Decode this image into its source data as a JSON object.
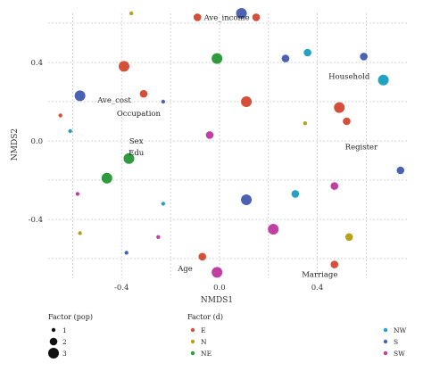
{
  "chart_data": {
    "type": "scatter",
    "xlabel": "NMDS1",
    "ylabel": "NMDS2",
    "xlim": [
      -0.7,
      0.77
    ],
    "ylim": [
      -0.7,
      0.65
    ],
    "xticks": [
      -0.4,
      0.0,
      0.4
    ],
    "xtick_labels": [
      "-0.4",
      "0.0",
      "0.4"
    ],
    "yticks": [
      -0.4,
      0.0,
      0.4
    ],
    "ytick_labels": [
      "-0.4",
      "0.0",
      "0.4"
    ],
    "grid": true,
    "points": [
      {
        "x": -0.09,
        "y": 0.63,
        "d": "E",
        "pop": 2
      },
      {
        "x": 0.15,
        "y": 0.63,
        "d": "E",
        "pop": 2
      },
      {
        "x": 0.09,
        "y": 0.65,
        "d": "S",
        "pop": 3
      },
      {
        "x": -0.36,
        "y": 0.65,
        "d": "N",
        "pop": 1
      },
      {
        "x": -0.39,
        "y": 0.38,
        "d": "E",
        "pop": 3
      },
      {
        "x": -0.01,
        "y": 0.42,
        "d": "NE",
        "pop": 3
      },
      {
        "x": 0.27,
        "y": 0.42,
        "d": "S",
        "pop": 2
      },
      {
        "x": 0.36,
        "y": 0.45,
        "d": "NW",
        "pop": 2
      },
      {
        "x": 0.59,
        "y": 0.43,
        "d": "S",
        "pop": 2
      },
      {
        "x": 0.67,
        "y": 0.31,
        "d": "NW",
        "pop": 3
      },
      {
        "x": -0.57,
        "y": 0.23,
        "d": "S",
        "pop": 3
      },
      {
        "x": -0.31,
        "y": 0.24,
        "d": "E",
        "pop": 2
      },
      {
        "x": -0.23,
        "y": 0.2,
        "d": "S",
        "pop": 1
      },
      {
        "x": 0.11,
        "y": 0.2,
        "d": "E",
        "pop": 3
      },
      {
        "x": 0.49,
        "y": 0.17,
        "d": "E",
        "pop": 3
      },
      {
        "x": 0.52,
        "y": 0.1,
        "d": "E",
        "pop": 2
      },
      {
        "x": -0.65,
        "y": 0.13,
        "d": "E",
        "pop": 1
      },
      {
        "x": 0.35,
        "y": 0.09,
        "d": "N",
        "pop": 1
      },
      {
        "x": -0.04,
        "y": 0.03,
        "d": "SW",
        "pop": 2
      },
      {
        "x": -0.61,
        "y": 0.05,
        "d": "NW",
        "pop": 1
      },
      {
        "x": -0.37,
        "y": -0.09,
        "d": "NE",
        "pop": 3
      },
      {
        "x": -0.46,
        "y": -0.19,
        "d": "NE",
        "pop": 3
      },
      {
        "x": 0.74,
        "y": -0.15,
        "d": "S",
        "pop": 2
      },
      {
        "x": 0.47,
        "y": -0.23,
        "d": "SW",
        "pop": 2
      },
      {
        "x": 0.31,
        "y": -0.27,
        "d": "NW",
        "pop": 2
      },
      {
        "x": -0.58,
        "y": -0.27,
        "d": "SW",
        "pop": 1
      },
      {
        "x": -0.23,
        "y": -0.32,
        "d": "NW",
        "pop": 1
      },
      {
        "x": 0.11,
        "y": -0.3,
        "d": "S",
        "pop": 3
      },
      {
        "x": 0.22,
        "y": -0.45,
        "d": "SW",
        "pop": 3
      },
      {
        "x": -0.57,
        "y": -0.47,
        "d": "N",
        "pop": 1
      },
      {
        "x": -0.25,
        "y": -0.49,
        "d": "SW",
        "pop": 1
      },
      {
        "x": 0.53,
        "y": -0.49,
        "d": "N",
        "pop": 2
      },
      {
        "x": -0.38,
        "y": -0.57,
        "d": "S",
        "pop": 1
      },
      {
        "x": -0.07,
        "y": -0.59,
        "d": "E",
        "pop": 2
      },
      {
        "x": 0.47,
        "y": -0.63,
        "d": "E",
        "pop": 2
      },
      {
        "x": -0.01,
        "y": -0.67,
        "d": "SW",
        "pop": 3
      }
    ],
    "annotations": [
      {
        "text": "Ave_income",
        "x": 0.03,
        "y": 0.63
      },
      {
        "text": "Household",
        "x": 0.53,
        "y": 0.33
      },
      {
        "text": "Ave_cost",
        "x": -0.43,
        "y": 0.21
      },
      {
        "text": "Occupation",
        "x": -0.33,
        "y": 0.14
      },
      {
        "text": "Sex",
        "x": -0.34,
        "y": 0.0
      },
      {
        "text": "Edu",
        "x": -0.34,
        "y": -0.06
      },
      {
        "text": "Register",
        "x": 0.58,
        "y": -0.03
      },
      {
        "text": "Age",
        "x": -0.14,
        "y": -0.65
      },
      {
        "text": "Marriage",
        "x": 0.41,
        "y": -0.68
      }
    ],
    "legend": {
      "placement": "bottom",
      "size": {
        "title": "Factor (pop)",
        "items": [
          {
            "label": "1",
            "pop": 1
          },
          {
            "label": "2",
            "pop": 2
          },
          {
            "label": "3",
            "pop": 3
          }
        ]
      },
      "color": {
        "title": "Factor (d)",
        "items": [
          {
            "label": "E",
            "color": "#d4503a"
          },
          {
            "label": "N",
            "color": "#b8a21a"
          },
          {
            "label": "NE",
            "color": "#2f9a3e"
          },
          {
            "label": "NW",
            "color": "#23a3c1"
          },
          {
            "label": "S",
            "color": "#4a62b4"
          },
          {
            "label": "SW",
            "color": "#c13fa3"
          }
        ]
      }
    },
    "colors": {
      "E": "#d4503a",
      "N": "#b8a21a",
      "NE": "#2f9a3e",
      "NW": "#23a3c1",
      "S": "#4a62b4",
      "SW": "#c13fa3"
    }
  }
}
